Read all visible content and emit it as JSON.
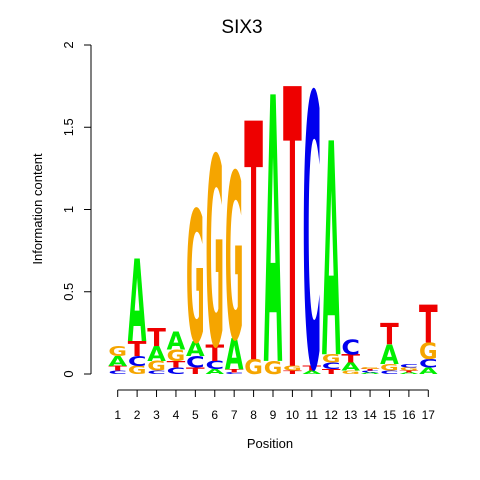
{
  "chart_data": {
    "type": "sequence-logo",
    "title": "SIX3",
    "xlabel": "Position",
    "ylabel": "Information content",
    "ylim": [
      0,
      2
    ],
    "yticks": [
      "0",
      "0.5",
      "1",
      "1.5",
      "2"
    ],
    "positions": [
      "1",
      "2",
      "3",
      "4",
      "5",
      "6",
      "7",
      "8",
      "9",
      "10",
      "11",
      "12",
      "13",
      "14",
      "15",
      "16",
      "17"
    ],
    "colors": {
      "A": "#00ee00",
      "C": "#0000ee",
      "G": "#f5a500",
      "T": "#ee0000"
    },
    "columns": [
      [
        [
          "C",
          0.02
        ],
        [
          "T",
          0.03
        ],
        [
          "A",
          0.06
        ],
        [
          "G",
          0.06
        ]
      ],
      [
        [
          "G",
          0.05
        ],
        [
          "C",
          0.06
        ],
        [
          "T",
          0.09
        ],
        [
          "A",
          0.5
        ]
      ],
      [
        [
          "C",
          0.02
        ],
        [
          "G",
          0.06
        ],
        [
          "A",
          0.09
        ],
        [
          "T",
          0.11
        ]
      ],
      [
        [
          "C",
          0.04
        ],
        [
          "T",
          0.04
        ],
        [
          "G",
          0.07
        ],
        [
          "A",
          0.11
        ]
      ],
      [
        [
          "T",
          0.04
        ],
        [
          "C",
          0.07
        ],
        [
          "A",
          0.09
        ],
        [
          "G",
          0.8
        ]
      ],
      [
        [
          "A",
          0.03
        ],
        [
          "C",
          0.05
        ],
        [
          "T",
          0.1
        ],
        [
          "G",
          1.15
        ]
      ],
      [
        [
          "C",
          0.01
        ],
        [
          "T",
          0.02
        ],
        [
          "A",
          0.19
        ],
        [
          "G",
          1.01
        ]
      ],
      [
        [
          "G",
          0.09
        ],
        [
          "T",
          1.45
        ]
      ],
      [
        [
          "G",
          0.08
        ],
        [
          "A",
          1.62
        ]
      ],
      [
        [
          "T",
          0.02
        ],
        [
          "G",
          0.03
        ],
        [
          "T",
          1.7
        ]
      ],
      [
        [
          "A",
          0.02
        ],
        [
          "T",
          0.03
        ],
        [
          "C",
          1.66
        ]
      ],
      [
        [
          "T",
          0.03
        ],
        [
          "C",
          0.04
        ],
        [
          "G",
          0.05
        ],
        [
          "A",
          1.3
        ]
      ],
      [
        [
          "G",
          0.02
        ],
        [
          "A",
          0.05
        ],
        [
          "T",
          0.05
        ],
        [
          "C",
          0.09
        ]
      ],
      [
        [
          "A",
          0.01
        ],
        [
          "C",
          0.01
        ],
        [
          "T",
          0.01
        ],
        [
          "G",
          0.01
        ]
      ],
      [
        [
          "C",
          0.02
        ],
        [
          "G",
          0.04
        ],
        [
          "A",
          0.12
        ],
        [
          "T",
          0.13
        ]
      ],
      [
        [
          "A",
          0.01
        ],
        [
          "T",
          0.01
        ],
        [
          "G",
          0.02
        ],
        [
          "C",
          0.02
        ]
      ],
      [
        [
          "A",
          0.04
        ],
        [
          "C",
          0.05
        ],
        [
          "G",
          0.1
        ],
        [
          "T",
          0.23
        ]
      ]
    ]
  }
}
